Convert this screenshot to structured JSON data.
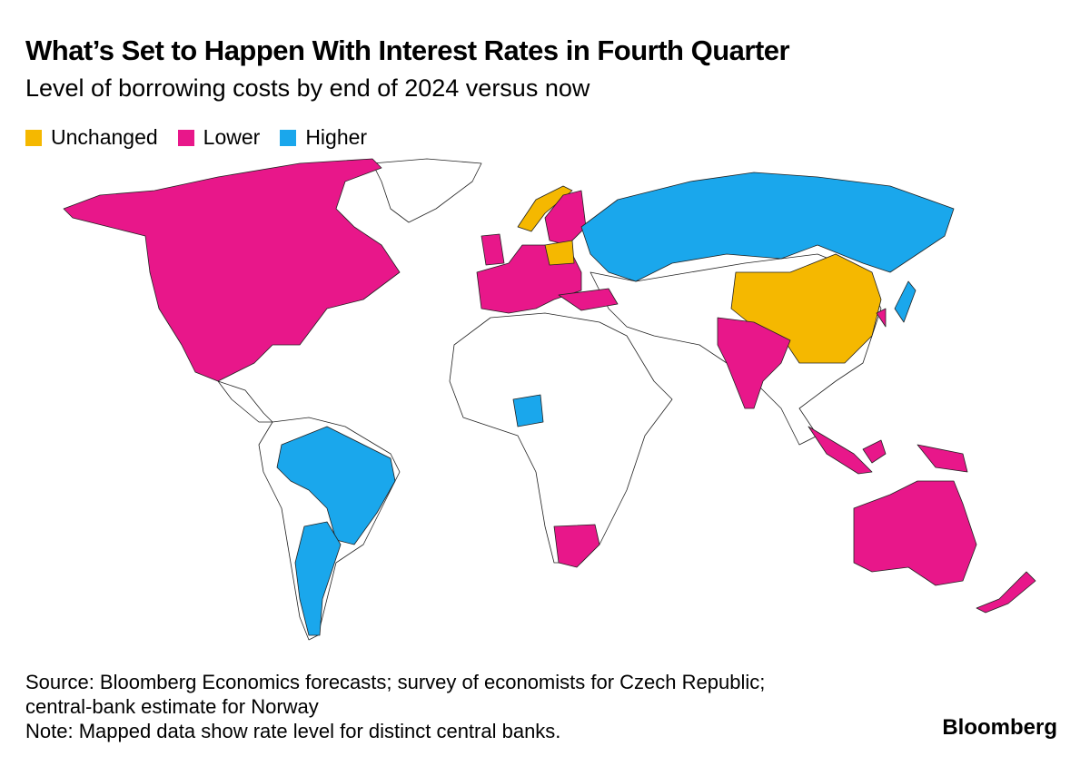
{
  "header": {
    "title": "What’s Set to Happen With Interest Rates in Fourth Quarter",
    "subtitle": "Level of borrowing costs by end of 2024 versus now"
  },
  "legend": [
    {
      "label": "Unchanged",
      "color": "#f5b800"
    },
    {
      "label": "Lower",
      "color": "#e8178a"
    },
    {
      "label": "Higher",
      "color": "#1aa7ec"
    }
  ],
  "footer": {
    "source": "Source: Bloomberg Economics forecasts; survey of economists for Czech Republic; central-bank estimate for Norway",
    "note": "Note: Mapped data show rate level for distinct central banks.",
    "brand": "Bloomberg"
  }
}
